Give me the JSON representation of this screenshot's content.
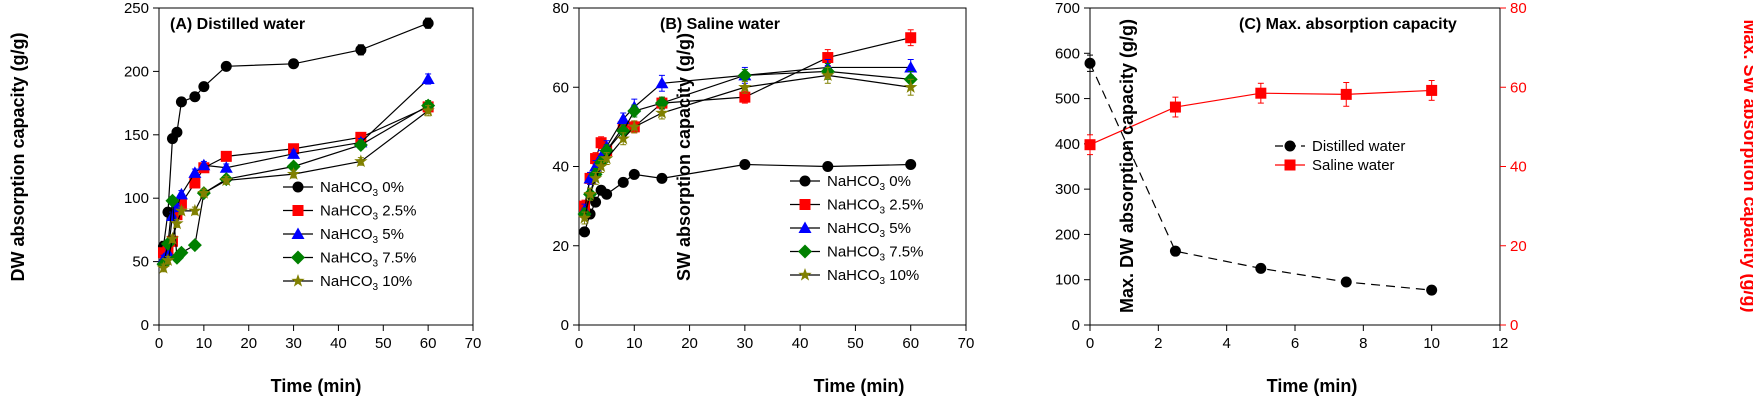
{
  "chart_data": [
    {
      "type": "line",
      "title": "(A) Distilled water",
      "xlabel": "Time (min)",
      "ylabel": "DW absorption capacity (g/g)",
      "xlim": [
        0,
        70
      ],
      "ylim": [
        0,
        250
      ],
      "xticks": [
        0,
        10,
        20,
        30,
        40,
        50,
        60,
        70
      ],
      "yticks": [
        0,
        50,
        100,
        150,
        200,
        250
      ],
      "legend_position": "lower-right",
      "series": [
        {
          "name_parts": [
            "NaHCO",
            "3",
            " 0%"
          ],
          "color": "#000000",
          "marker": "circle",
          "x": [
            1,
            2,
            3,
            4,
            5,
            8,
            10,
            15,
            30,
            45,
            60
          ],
          "y": [
            62,
            89,
            147,
            152,
            176,
            180,
            188,
            204,
            206,
            217,
            238
          ],
          "err": [
            4,
            3,
            3,
            3,
            3,
            3,
            3,
            2,
            3,
            4,
            4
          ]
        },
        {
          "name_parts": [
            "NaHCO",
            "3",
            " 2.5%"
          ],
          "color": "#ff0000",
          "marker": "square",
          "x": [
            1,
            2,
            3,
            4,
            5,
            8,
            10,
            15,
            30,
            45,
            60
          ],
          "y": [
            57,
            58,
            66,
            87,
            96,
            112,
            124,
            133,
            139,
            148,
            172
          ],
          "err": [
            3,
            3,
            3,
            3,
            3,
            3,
            3,
            3,
            3,
            3,
            4
          ]
        },
        {
          "name_parts": [
            "NaHCO",
            "3",
            " 5%"
          ],
          "color": "#0000ff",
          "marker": "triangle",
          "x": [
            1,
            2,
            3,
            4,
            5,
            8,
            10,
            15,
            30,
            45,
            60
          ],
          "y": [
            52,
            57,
            86,
            93,
            103,
            120,
            126,
            124,
            135,
            144,
            194
          ],
          "err": [
            3,
            3,
            3,
            3,
            3,
            3,
            3,
            3,
            3,
            3,
            4
          ]
        },
        {
          "name_parts": [
            "NaHCO",
            "3",
            " 7.5%"
          ],
          "color": "#008000",
          "marker": "diamond",
          "x": [
            1,
            2,
            3,
            4,
            5,
            8,
            10,
            15,
            30,
            45,
            60
          ],
          "y": [
            48,
            64,
            98,
            53,
            57,
            63,
            104,
            115,
            125,
            142,
            173
          ],
          "err": [
            3,
            3,
            3,
            3,
            3,
            3,
            3,
            3,
            3,
            3,
            4
          ]
        },
        {
          "name_parts": [
            "NaHCO",
            "3",
            " 10%"
          ],
          "color": "#808000",
          "marker": "star",
          "x": [
            1,
            2,
            3,
            4,
            5,
            8,
            10,
            15,
            30,
            45,
            60
          ],
          "y": [
            45,
            51,
            68,
            80,
            90,
            90,
            104,
            114,
            119,
            129,
            169
          ],
          "err": [
            3,
            3,
            3,
            3,
            3,
            3,
            3,
            3,
            3,
            3,
            4
          ]
        }
      ]
    },
    {
      "type": "line",
      "title": "(B) Saline water",
      "xlabel": "Time (min)",
      "ylabel": "SW absorption capacity (g/g)",
      "xlim": [
        0,
        70
      ],
      "ylim": [
        0,
        80
      ],
      "xticks": [
        0,
        10,
        20,
        30,
        40,
        50,
        60,
        70
      ],
      "yticks": [
        0,
        20,
        40,
        60,
        80
      ],
      "legend_position": "lower-right",
      "series": [
        {
          "name_parts": [
            "NaHCO",
            "3",
            " 0%"
          ],
          "color": "#000000",
          "marker": "circle",
          "x": [
            1,
            2,
            3,
            4,
            5,
            8,
            10,
            15,
            30,
            45,
            60
          ],
          "y": [
            23.5,
            28,
            31,
            34,
            33,
            36,
            38,
            37,
            40.5,
            40,
            40.5
          ],
          "err": [
            1,
            1,
            1,
            1,
            1,
            1,
            1,
            1,
            1,
            1,
            1
          ]
        },
        {
          "name_parts": [
            "NaHCO",
            "3",
            " 2.5%"
          ],
          "color": "#ff0000",
          "marker": "square",
          "x": [
            1,
            2,
            3,
            4,
            5,
            8,
            10,
            15,
            30,
            45,
            60
          ],
          "y": [
            30,
            37,
            42,
            46,
            44,
            50,
            50,
            56,
            57.5,
            67.5,
            72.5
          ],
          "err": [
            1.5,
            1.5,
            1.5,
            1.5,
            1.5,
            1.5,
            1.5,
            1.5,
            1.5,
            2,
            2
          ]
        },
        {
          "name_parts": [
            "NaHCO",
            "3",
            " 5%"
          ],
          "color": "#0000ff",
          "marker": "triangle",
          "x": [
            1,
            2,
            3,
            4,
            5,
            8,
            10,
            15,
            30,
            45,
            60
          ],
          "y": [
            29,
            37,
            40,
            42.5,
            45,
            52,
            55,
            61,
            63,
            65,
            65
          ],
          "err": [
            1.5,
            1.5,
            1.5,
            1.5,
            1.5,
            1.5,
            2,
            2,
            2,
            2,
            2
          ]
        },
        {
          "name_parts": [
            "NaHCO",
            "3",
            " 7.5%"
          ],
          "color": "#008000",
          "marker": "diamond",
          "x": [
            1,
            2,
            3,
            4,
            5,
            8,
            10,
            15,
            30,
            45,
            60
          ],
          "y": [
            28,
            33,
            38,
            41,
            44,
            49,
            54,
            56,
            63,
            64,
            62
          ],
          "err": [
            1.5,
            1.5,
            1.5,
            1.5,
            1.5,
            1.5,
            1.5,
            1.5,
            1.5,
            2,
            2
          ]
        },
        {
          "name_parts": [
            "NaHCO",
            "3",
            " 10%"
          ],
          "color": "#808000",
          "marker": "star",
          "x": [
            1,
            2,
            3,
            4,
            5,
            8,
            10,
            15,
            30,
            45,
            60
          ],
          "y": [
            27,
            33,
            37,
            40,
            42,
            47,
            50,
            53.5,
            60,
            63,
            60
          ],
          "err": [
            1.5,
            1.5,
            1.5,
            1.5,
            1.5,
            1.5,
            1.5,
            1.5,
            1.5,
            2,
            2
          ]
        }
      ]
    },
    {
      "type": "line",
      "title": "(C) Max. absorption capacity",
      "xlabel": "Time (min)",
      "ylabel": "Max. DW absorption capacity (g/g)",
      "y2label": "Max. SW absorption capacity (g/g)",
      "y2color": "#ff0000",
      "xlim": [
        0,
        12
      ],
      "ylim": [
        0,
        700
      ],
      "y2lim": [
        0,
        80
      ],
      "xticks": [
        0,
        2,
        4,
        6,
        8,
        10,
        12
      ],
      "yticks": [
        0,
        100,
        200,
        300,
        400,
        500,
        600,
        700
      ],
      "y2ticks": [
        0,
        20,
        40,
        60,
        80
      ],
      "legend_position": "right-middle",
      "series": [
        {
          "name": "Distilled water",
          "axis": "left",
          "color": "#000000",
          "marker": "circle",
          "dashed": true,
          "x": [
            0,
            2.5,
            5,
            7.5,
            10
          ],
          "y": [
            578,
            163,
            125,
            95,
            77
          ],
          "err": [
            18,
            8,
            6,
            5,
            5
          ]
        },
        {
          "name": "Saline water",
          "axis": "right",
          "color": "#ff0000",
          "marker": "square",
          "dashed": false,
          "x": [
            0,
            2.5,
            5,
            7.5,
            10
          ],
          "y": [
            45.5,
            55,
            58.5,
            58.2,
            59.2
          ],
          "err": [
            2.5,
            2.5,
            2.5,
            3,
            2.5
          ]
        }
      ]
    }
  ]
}
